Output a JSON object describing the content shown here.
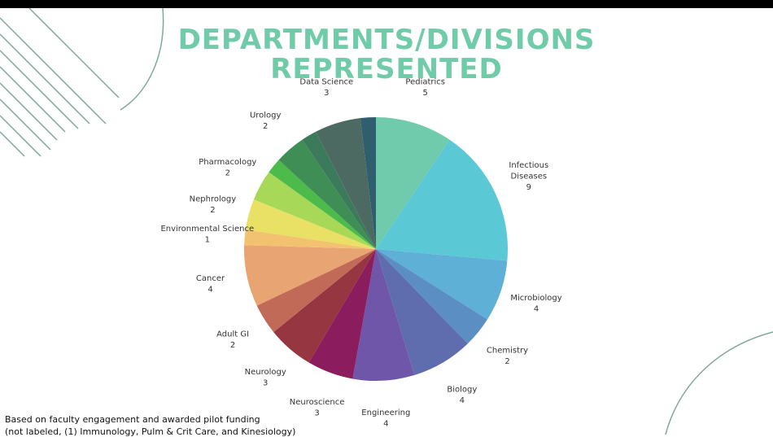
{
  "title": {
    "line1": "DEPARTMENTS/DIVISIONS",
    "line2": "REPRESENTED"
  },
  "footnote": {
    "line1": "Based on faculty engagement and awarded pilot funding",
    "line2": "(not labeled, (1) Immunology, Pulm & Crit Care, and Kinesiology)"
  },
  "colors": {
    "title": "#6fcba8",
    "decoration": "#7fa79b"
  },
  "chart_data": {
    "type": "pie",
    "title": "",
    "slices": [
      {
        "label": "Pediatrics",
        "value": 5,
        "color": "#70cbac",
        "labeled": true
      },
      {
        "label": "Infectious Diseases",
        "label_lines": [
          "Infectious",
          "Diseases"
        ],
        "value": 9,
        "color": "#5bc8d6",
        "labeled": true
      },
      {
        "label": "Microbiology",
        "value": 4,
        "color": "#5fb0d6",
        "labeled": true
      },
      {
        "label": "Chemistry",
        "value": 2,
        "color": "#5b8fc4",
        "labeled": true
      },
      {
        "label": "Biology",
        "value": 4,
        "color": "#5f6cae",
        "labeled": true
      },
      {
        "label": "Engineering",
        "value": 4,
        "color": "#7056a8",
        "labeled": true
      },
      {
        "label": "Neuroscience",
        "value": 3,
        "color": "#8b1c5e",
        "labeled": true
      },
      {
        "label": "Neurology",
        "value": 3,
        "color": "#953641",
        "labeled": true
      },
      {
        "label": "Adult GI",
        "value": 2,
        "color": "#c26a58",
        "labeled": true
      },
      {
        "label": "Cancer",
        "value": 4,
        "color": "#e8a472",
        "labeled": true
      },
      {
        "label": "Environmental Science",
        "value": 1,
        "color": "#f3c271",
        "labeled": true
      },
      {
        "label": "Nephrology",
        "value": 2,
        "color": "#e9e066",
        "labeled": true
      },
      {
        "label": "Pharmacology",
        "value": 2,
        "color": "#a8d858",
        "labeled": true
      },
      {
        "label": "",
        "value": 1,
        "color": "#4dbb4c",
        "labeled": false
      },
      {
        "label": "Urology",
        "value": 2,
        "color": "#3e8e55",
        "labeled": true
      },
      {
        "label": "",
        "value": 1,
        "color": "#3c7a5c",
        "labeled": false
      },
      {
        "label": "Data Science",
        "value": 3,
        "color": "#4d6a62",
        "labeled": true
      },
      {
        "label": "",
        "value": 1,
        "color": "#2f5e6e",
        "labeled": false
      }
    ]
  }
}
